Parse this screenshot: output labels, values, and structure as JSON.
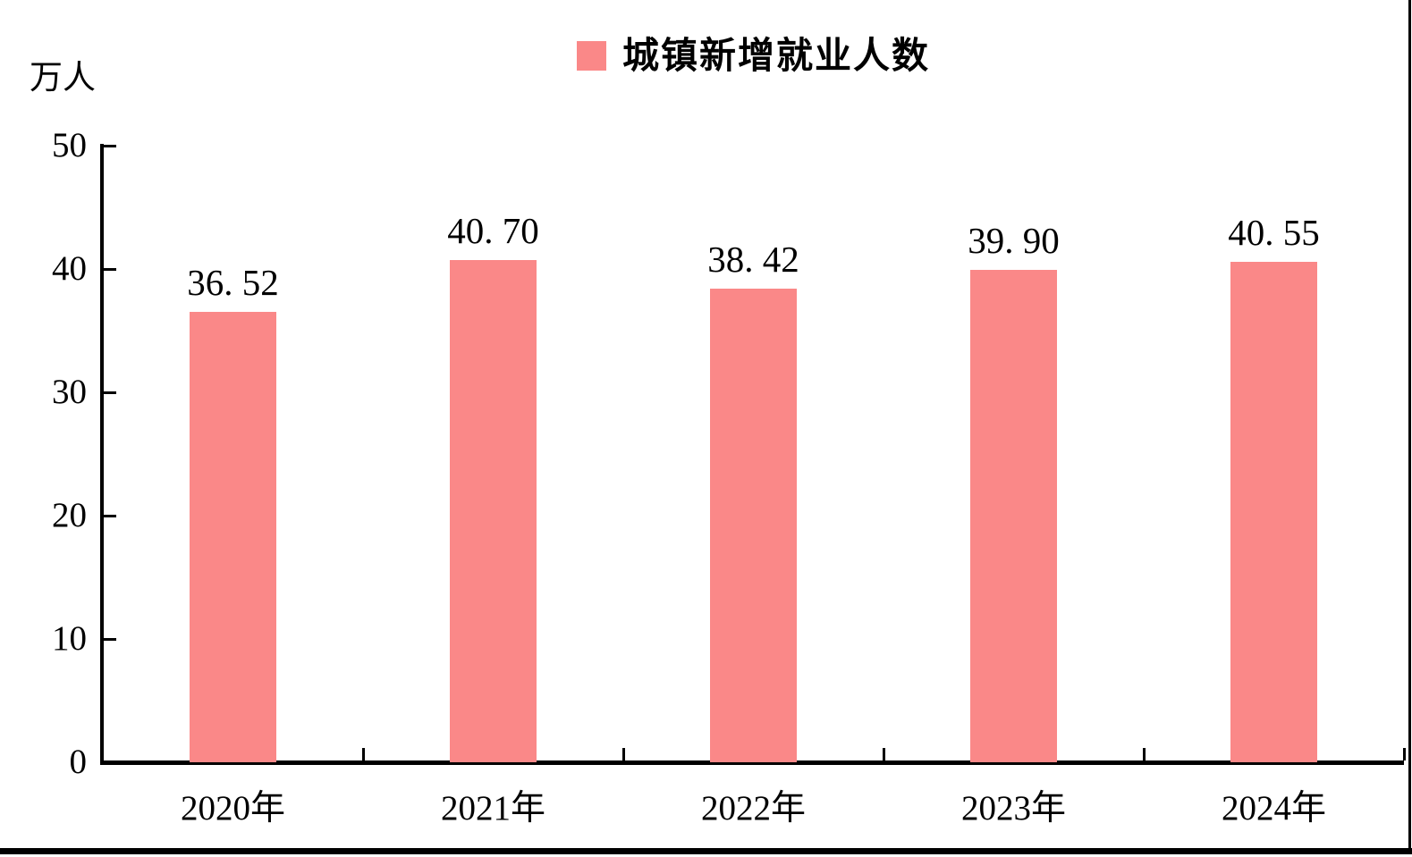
{
  "chart": {
    "unit_label": "万人",
    "legend": {
      "label": "城镇新增就业人数",
      "swatch_color": "#FA8888"
    }
  },
  "chart_data": {
    "type": "bar",
    "title": "城镇新增就业人数",
    "categories": [
      "2020年",
      "2021年",
      "2022年",
      "2023年",
      "2024年"
    ],
    "values": [
      36.52,
      40.7,
      38.42,
      39.9,
      40.55
    ],
    "value_labels": [
      "36. 52",
      "40. 70",
      "38. 42",
      "39. 90",
      "40. 55"
    ],
    "xlabel": "",
    "ylabel": "万人",
    "ylim": [
      0,
      50
    ],
    "yticks": [
      50,
      40,
      30,
      20,
      10,
      0
    ],
    "grid": false,
    "legend_position": "top-center",
    "bar_color": "#FA8888",
    "axis_color": "#000000",
    "text_color": "#000000"
  }
}
